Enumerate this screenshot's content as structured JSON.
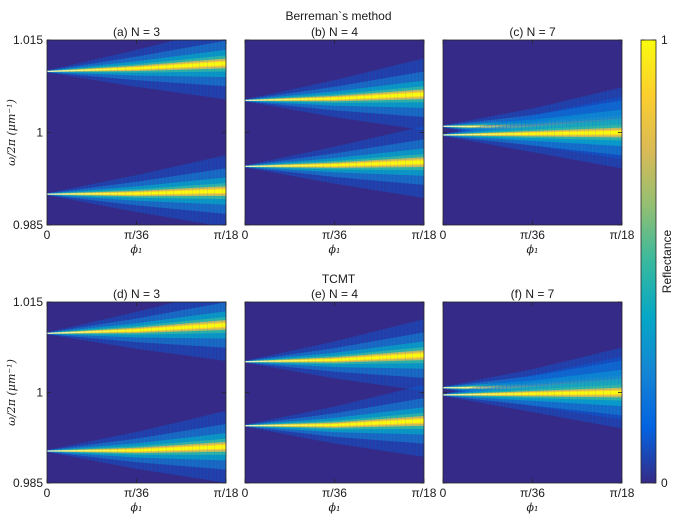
{
  "figure": {
    "section_titles": [
      "Berreman`s method",
      "TCMT"
    ],
    "ylabel": "ω/2π (μm⁻¹)",
    "xlabel": "ϕ₁",
    "colorbar": {
      "label": "Reflectance",
      "ticks": [
        "1",
        "0"
      ],
      "range": [
        0,
        1
      ],
      "colormap": "parula",
      "colors": [
        "#352a87",
        "#0363e1",
        "#1485d4",
        "#06a7c6",
        "#38b99e",
        "#92bf73",
        "#d9ba56",
        "#fcce2e",
        "#f9fb0e"
      ]
    }
  },
  "chart_data": [
    {
      "type": "heatmap",
      "group": "Berreman`s method",
      "title": "(a) N = 3",
      "xlabel": "ϕ₁",
      "ylabel": "ω/2π (μm⁻¹)",
      "xlim": [
        0,
        0.1745
      ],
      "ylim": [
        0.985,
        1.015
      ],
      "xticks": [
        "0",
        "π/36",
        "π/18"
      ],
      "yticks": [
        "0.985",
        "1",
        "1.015"
      ],
      "bands": [
        {
          "x": [
            0,
            0.0873,
            0.1745
          ],
          "y": [
            1.0099,
            1.0104,
            1.0112
          ]
        },
        {
          "x": [
            0,
            0.0873,
            0.1745
          ],
          "y": [
            0.99,
            0.9901,
            0.9905
          ]
        }
      ]
    },
    {
      "type": "heatmap",
      "group": "Berreman`s method",
      "title": "(b) N = 4",
      "xlabel": "ϕ₁",
      "ylabel": "",
      "xlim": [
        0,
        0.1745
      ],
      "ylim": [
        0.985,
        1.015
      ],
      "xticks": [
        "0",
        "π/36",
        "π/18"
      ],
      "yticks": [],
      "bands": [
        {
          "x": [
            0,
            0.0873,
            0.1745
          ],
          "y": [
            1.0052,
            1.0055,
            1.0062
          ]
        },
        {
          "x": [
            0,
            0.0873,
            0.1745
          ],
          "y": [
            0.9945,
            0.9947,
            0.9952
          ]
        }
      ]
    },
    {
      "type": "heatmap",
      "group": "Berreman`s method",
      "title": "(c) N = 7",
      "xlabel": "ϕ₁",
      "ylabel": "",
      "xlim": [
        0,
        0.1745
      ],
      "ylim": [
        0.985,
        1.015
      ],
      "xticks": [
        "0",
        "π/36",
        "π/18"
      ],
      "yticks": [],
      "bands": [
        {
          "x": [
            0,
            0.0873,
            0.1745
          ],
          "y": [
            1.001,
            1.0009,
            1.0015
          ]
        },
        {
          "x": [
            0,
            0.0873,
            0.1745
          ],
          "y": [
            0.9996,
            0.9998,
            1.0
          ]
        }
      ]
    },
    {
      "type": "heatmap",
      "group": "TCMT",
      "title": "(d) N = 3",
      "xlabel": "ϕ₁",
      "ylabel": "ω/2π (μm⁻¹)",
      "xlim": [
        0,
        0.1745
      ],
      "ylim": [
        0.985,
        1.015
      ],
      "xticks": [
        "0",
        "π/36",
        "π/18"
      ],
      "yticks": [
        "0.985",
        "1",
        "1.015"
      ],
      "bands": [
        {
          "x": [
            0,
            0.0873,
            0.1745
          ],
          "y": [
            1.0098,
            1.0103,
            1.0112
          ]
        },
        {
          "x": [
            0,
            0.0873,
            0.1745
          ],
          "y": [
            0.9903,
            0.9904,
            0.991
          ]
        }
      ]
    },
    {
      "type": "heatmap",
      "group": "TCMT",
      "title": "(e) N = 4",
      "xlabel": "ϕ₁",
      "ylabel": "",
      "xlim": [
        0,
        0.1745
      ],
      "ylim": [
        0.985,
        1.015
      ],
      "xticks": [
        "0",
        "π/36",
        "π/18"
      ],
      "yticks": [],
      "bands": [
        {
          "x": [
            0,
            0.0873,
            0.1745
          ],
          "y": [
            1.0051,
            1.0054,
            1.0062
          ]
        },
        {
          "x": [
            0,
            0.0873,
            0.1745
          ],
          "y": [
            0.9945,
            0.9946,
            0.9953
          ]
        }
      ]
    },
    {
      "type": "heatmap",
      "group": "TCMT",
      "title": "(f) N = 7",
      "xlabel": "ϕ₁",
      "ylabel": "",
      "xlim": [
        0,
        0.1745
      ],
      "ylim": [
        0.985,
        1.015
      ],
      "xticks": [
        "0",
        "π/36",
        "π/18"
      ],
      "yticks": [],
      "bands": [
        {
          "x": [
            0,
            0.0873,
            0.1745
          ],
          "y": [
            1.0008,
            1.0008,
            1.0015
          ]
        },
        {
          "x": [
            0,
            0.0873,
            0.1745
          ],
          "y": [
            0.9996,
            0.9998,
            1.0
          ]
        }
      ]
    }
  ]
}
